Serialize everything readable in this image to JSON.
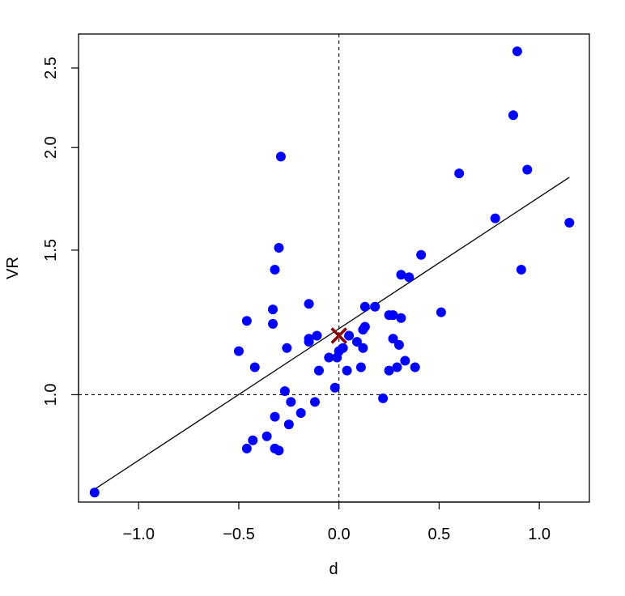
{
  "chart_data": {
    "type": "scatter",
    "xlabel": "d",
    "ylabel": "VR",
    "y_scale": "log",
    "xlim": [
      -1.3,
      1.25
    ],
    "ylim": [
      0.74,
      2.75
    ],
    "x_ticks": [
      -1.0,
      -0.5,
      0.0,
      0.5,
      1.0
    ],
    "x_tick_labels": [
      "−1.0",
      "−0.5",
      "0.0",
      "0.5",
      "1.0"
    ],
    "y_ticks": [
      1.0,
      1.5,
      2.0,
      2.5
    ],
    "y_tick_labels": [
      "1.0",
      "1.5",
      "2.0",
      "2.5"
    ],
    "reference_lines": {
      "x": 0.0,
      "y": 1.0,
      "style": "dashed"
    },
    "fit_line": {
      "x": [
        -1.22,
        1.15
      ],
      "y": [
        0.767,
        1.84
      ]
    },
    "marker": {
      "x": 0.0,
      "y": 1.18,
      "symbol": "x",
      "color": "#8b0000"
    },
    "grid": false,
    "colors": {
      "points": "#0000ff",
      "fit_line": "#000000",
      "marker": "#8b0000"
    },
    "series": [
      {
        "color": "#0000ff",
        "points": [
          [
            -1.22,
            0.76
          ],
          [
            -0.5,
            1.13
          ],
          [
            -0.46,
            1.23
          ],
          [
            -0.46,
            0.86
          ],
          [
            -0.43,
            0.88
          ],
          [
            -0.42,
            1.08
          ],
          [
            -0.36,
            0.89
          ],
          [
            -0.33,
            1.22
          ],
          [
            -0.33,
            1.27
          ],
          [
            -0.32,
            1.42
          ],
          [
            -0.32,
            0.94
          ],
          [
            -0.32,
            0.86
          ],
          [
            -0.3,
            1.51
          ],
          [
            -0.3,
            0.855
          ],
          [
            -0.29,
            1.95
          ],
          [
            -0.27,
            1.01
          ],
          [
            -0.26,
            1.14
          ],
          [
            -0.25,
            0.92
          ],
          [
            -0.24,
            0.98
          ],
          [
            -0.19,
            0.95
          ],
          [
            -0.15,
            1.16
          ],
          [
            -0.15,
            1.17
          ],
          [
            -0.15,
            1.29
          ],
          [
            -0.12,
            0.98
          ],
          [
            -0.11,
            1.18
          ],
          [
            -0.1,
            1.07
          ],
          [
            -0.05,
            1.11
          ],
          [
            -0.02,
            1.02
          ],
          [
            -0.01,
            1.11
          ],
          [
            0.0,
            1.13
          ],
          [
            0.02,
            1.14
          ],
          [
            0.04,
            1.07
          ],
          [
            0.05,
            1.18
          ],
          [
            0.09,
            1.16
          ],
          [
            0.11,
            1.08
          ],
          [
            0.12,
            1.2
          ],
          [
            0.12,
            1.14
          ],
          [
            0.13,
            1.28
          ],
          [
            0.13,
            1.21
          ],
          [
            0.18,
            1.28
          ],
          [
            0.22,
            0.99
          ],
          [
            0.25,
            1.25
          ],
          [
            0.25,
            1.07
          ],
          [
            0.27,
            1.25
          ],
          [
            0.27,
            1.17
          ],
          [
            0.29,
            1.08
          ],
          [
            0.3,
            1.15
          ],
          [
            0.31,
            1.24
          ],
          [
            0.31,
            1.4
          ],
          [
            0.33,
            1.1
          ],
          [
            0.35,
            1.39
          ],
          [
            0.38,
            1.08
          ],
          [
            0.41,
            1.48
          ],
          [
            0.51,
            1.26
          ],
          [
            0.6,
            1.86
          ],
          [
            0.78,
            1.64
          ],
          [
            0.87,
            2.19
          ],
          [
            0.89,
            2.62
          ],
          [
            0.91,
            1.42
          ],
          [
            0.94,
            1.88
          ],
          [
            1.15,
            1.62
          ]
        ]
      }
    ]
  }
}
